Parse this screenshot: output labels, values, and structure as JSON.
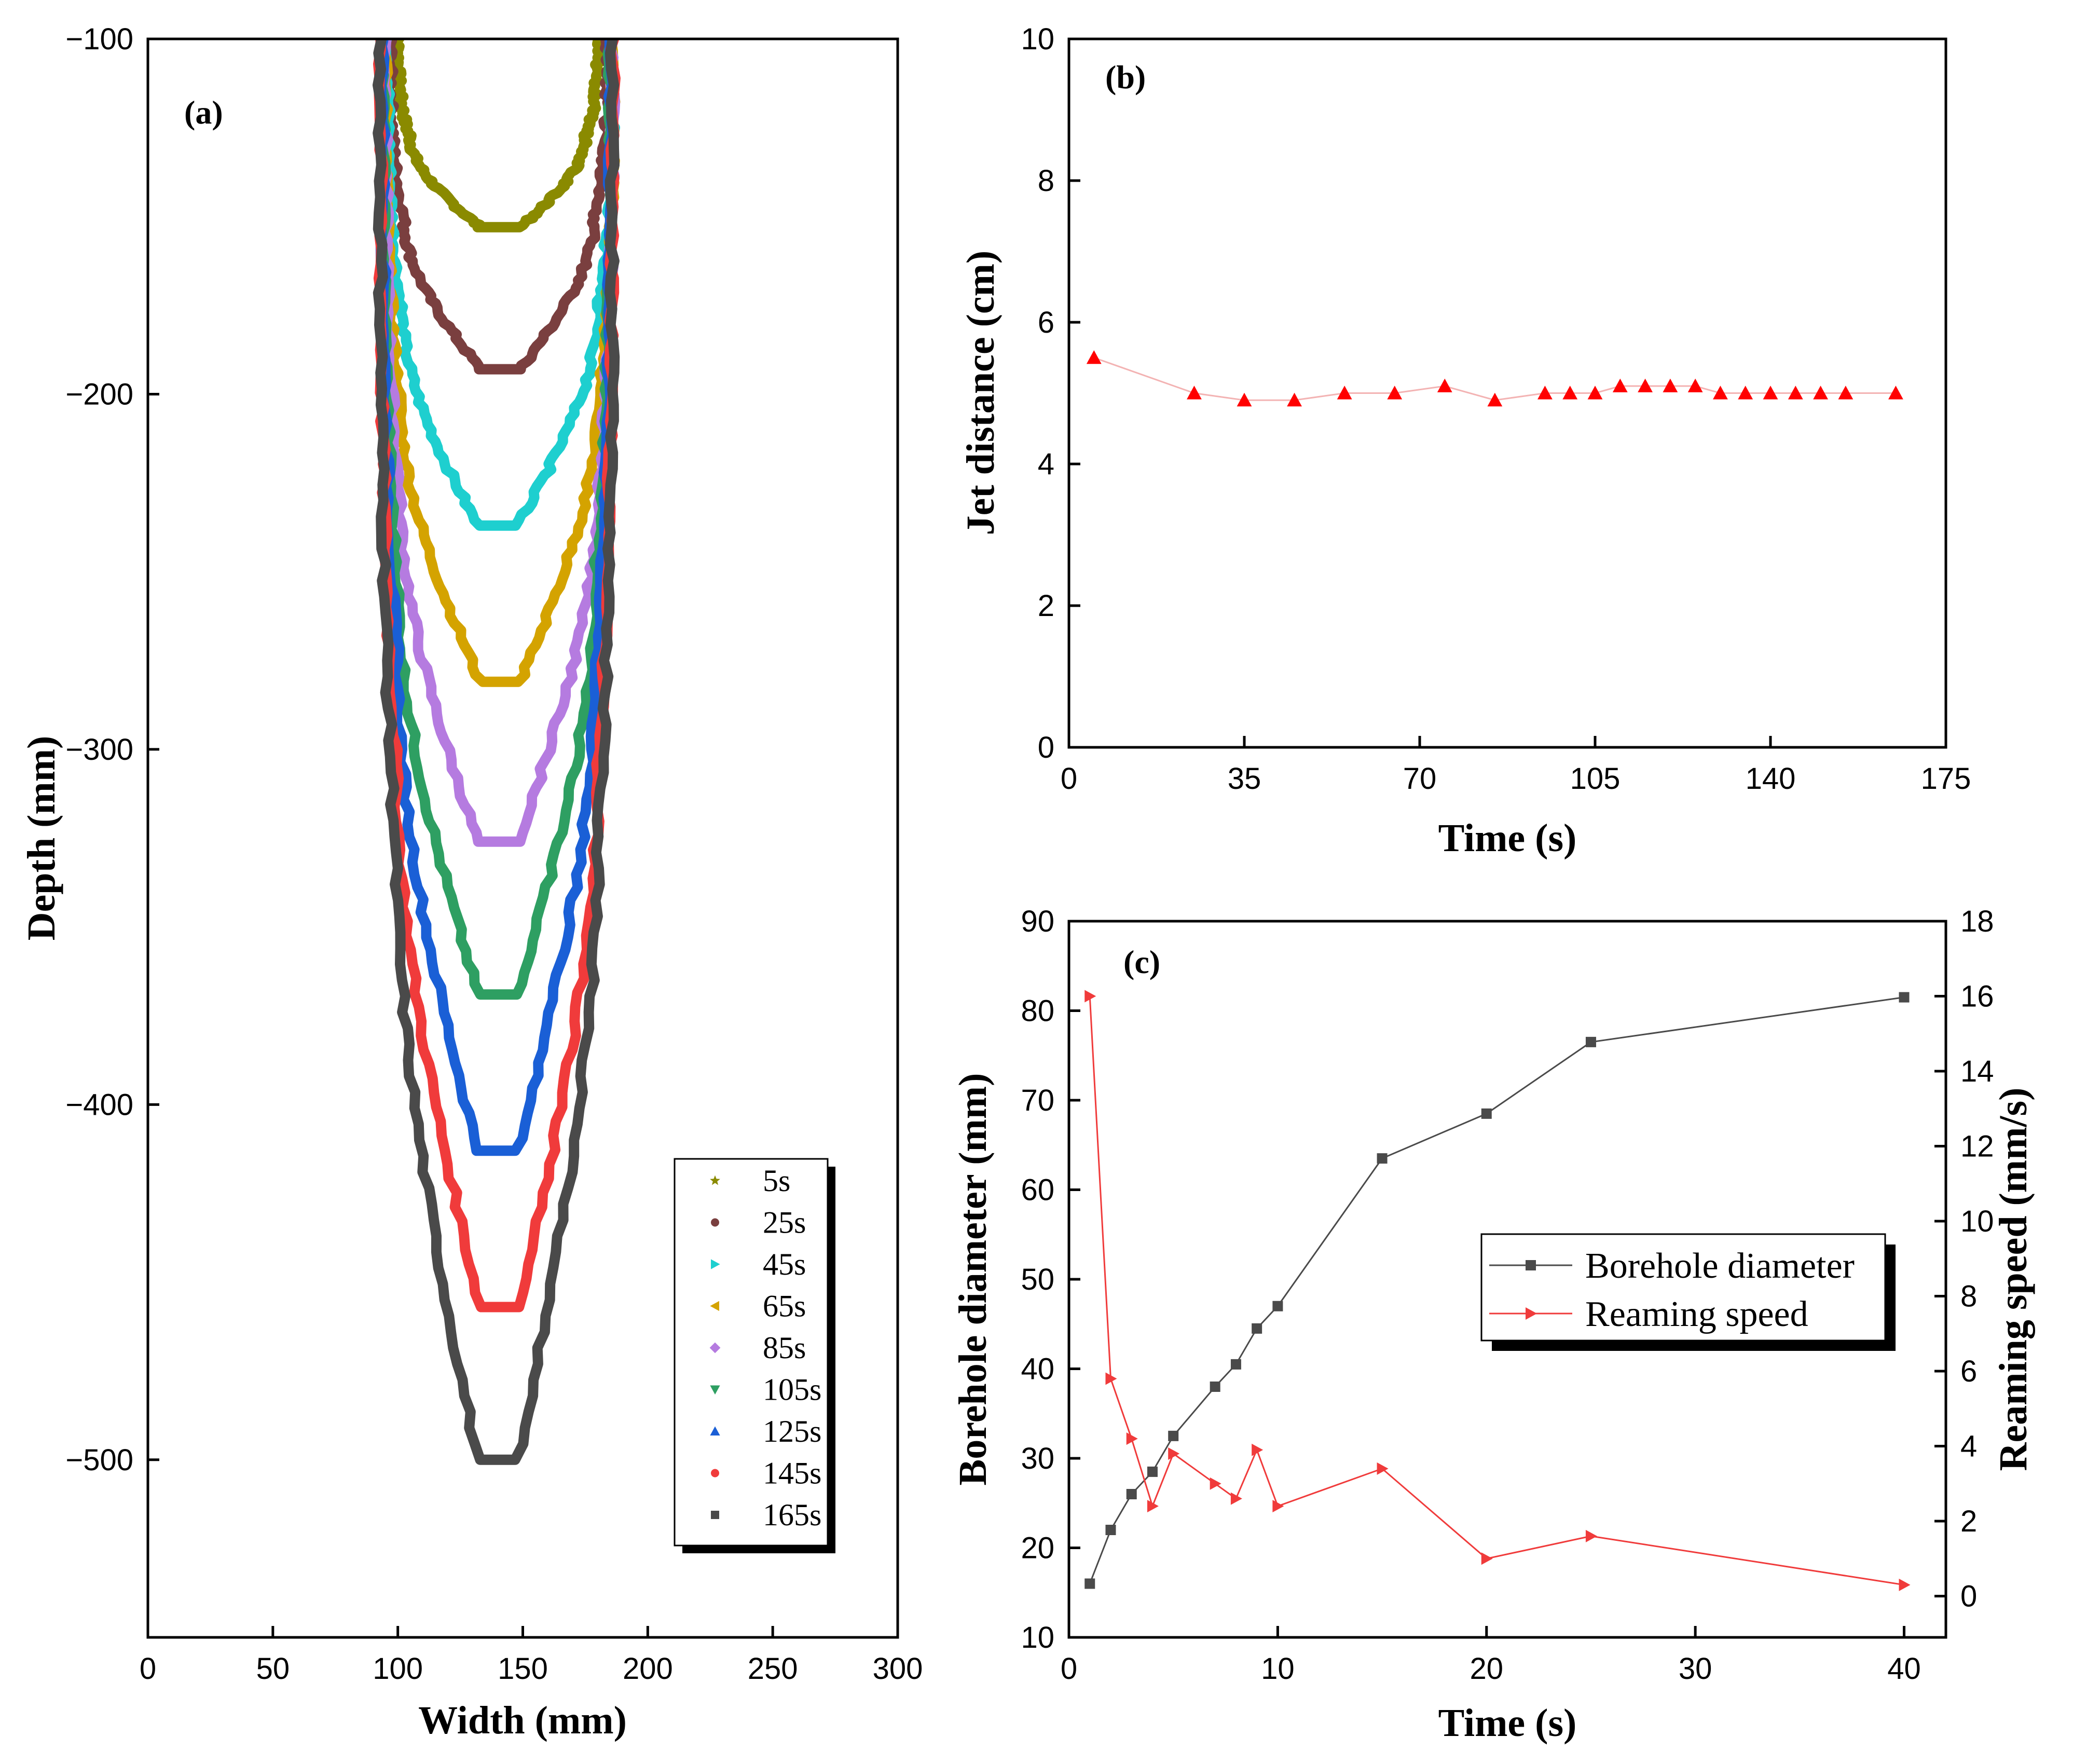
{
  "chart_data": [
    {
      "id": "a",
      "type": "line",
      "panel_label": "(a)",
      "xlabel": "Width (mm)",
      "ylabel": "Depth (mm)",
      "xlim": [
        0,
        300
      ],
      "ylim": [
        -550,
        -100
      ],
      "xticks": [
        0,
        50,
        100,
        150,
        200,
        250,
        300
      ],
      "yticks": [
        -100,
        -200,
        -300,
        -400,
        -500
      ],
      "xtick_labels": [
        "0",
        "50",
        "100",
        "150",
        "200",
        "250",
        "300"
      ],
      "ytick_labels": [
        "-100",
        "-200",
        "-300",
        "-400",
        "-500"
      ],
      "legend_position": "bottom-right",
      "series": [
        {
          "name": "5s",
          "color": "#8a8a00",
          "marker": "star",
          "bottom_depth": -153,
          "center_x": 141,
          "half_width": 40,
          "top_left": 100,
          "top_right": 180
        },
        {
          "name": "25s",
          "color": "#7a3f3f",
          "marker": "circle",
          "bottom_depth": -193,
          "center_x": 141,
          "half_width": 43,
          "top_left": 97,
          "top_right": 184
        },
        {
          "name": "45s",
          "color": "#1ecfcf",
          "marker": "triangle-right",
          "bottom_depth": -237,
          "center_x": 140,
          "half_width": 44,
          "top_left": 96,
          "top_right": 186
        },
        {
          "name": "65s",
          "color": "#d4a300",
          "marker": "triangle-left",
          "bottom_depth": -281,
          "center_x": 141,
          "half_width": 44,
          "top_left": 95,
          "top_right": 186
        },
        {
          "name": "85s",
          "color": "#b57be0",
          "marker": "diamond",
          "bottom_depth": -326,
          "center_x": 140,
          "half_width": 45,
          "top_left": 95,
          "top_right": 186
        },
        {
          "name": "105s",
          "color": "#2e9f62",
          "marker": "triangle-down",
          "bottom_depth": -369,
          "center_x": 140,
          "half_width": 45,
          "top_left": 94,
          "top_right": 185
        },
        {
          "name": "125s",
          "color": "#1a5fd6",
          "marker": "triangle-up",
          "bottom_depth": -413,
          "center_x": 140,
          "half_width": 46,
          "top_left": 94,
          "top_right": 185
        },
        {
          "name": "145s",
          "color": "#f03b3b",
          "marker": "circle",
          "bottom_depth": -457,
          "center_x": 141,
          "half_width": 47,
          "top_left": 93,
          "top_right": 186
        },
        {
          "name": "165s",
          "color": "#4a4a4a",
          "marker": "square",
          "bottom_depth": -500,
          "center_x": 140,
          "half_width": 47,
          "top_left": 93,
          "top_right": 186
        }
      ]
    },
    {
      "id": "b",
      "type": "scatter",
      "panel_label": "(b)",
      "xlabel": "Time (s)",
      "ylabel": "Jet distance (cm)",
      "xlim": [
        0,
        175
      ],
      "ylim": [
        0,
        10
      ],
      "xticks": [
        0,
        35,
        70,
        105,
        140,
        175
      ],
      "yticks": [
        0,
        2,
        4,
        6,
        8,
        10
      ],
      "xtick_labels": [
        "0",
        "35",
        "70",
        "105",
        "140",
        "175"
      ],
      "ytick_labels": [
        "0",
        "2",
        "4",
        "6",
        "8",
        "10"
      ],
      "series": [
        {
          "name": "Jet distance",
          "color": "#ff0000",
          "marker": "triangle-up",
          "x": [
            5,
            25,
            35,
            45,
            55,
            65,
            75,
            85,
            95,
            100,
            105,
            110,
            115,
            120,
            125,
            130,
            135,
            140,
            145,
            150,
            155,
            165
          ],
          "y": [
            5.5,
            5.0,
            4.9,
            4.9,
            5.0,
            5.0,
            5.1,
            4.9,
            5.0,
            5.0,
            5.0,
            5.1,
            5.1,
            5.1,
            5.1,
            5.0,
            5.0,
            5.0,
            5.0,
            5.0,
            5.0,
            5.0
          ]
        }
      ]
    },
    {
      "id": "c",
      "type": "line",
      "panel_label": "(c)",
      "xlabel": "Time (s)",
      "ylabel": "Borehole diameter (mm)",
      "y2label": "Reaming speed (mm/s)",
      "xlim": [
        0,
        42
      ],
      "ylim": [
        10,
        90
      ],
      "y2lim": [
        -1.1,
        18
      ],
      "xticks": [
        0,
        10,
        20,
        30,
        40
      ],
      "yticks": [
        10,
        20,
        30,
        40,
        50,
        60,
        70,
        80,
        90
      ],
      "y2ticks": [
        0,
        2,
        4,
        6,
        8,
        10,
        12,
        14,
        16,
        18
      ],
      "xtick_labels": [
        "0",
        "10",
        "20",
        "30",
        "40"
      ],
      "ytick_labels": [
        "10",
        "20",
        "30",
        "40",
        "50",
        "60",
        "70",
        "80",
        "90"
      ],
      "y2tick_labels": [
        "0",
        "2",
        "4",
        "6",
        "8",
        "10",
        "12",
        "14",
        "16",
        "18"
      ],
      "legend_position": "center-right",
      "series": [
        {
          "name": "Borehole diameter",
          "axis": "left",
          "color": "#4a4a4a",
          "marker": "square",
          "x": [
            1,
            2,
            3,
            4,
            5,
            7,
            8,
            9,
            10,
            15,
            20,
            25,
            40
          ],
          "y": [
            16,
            22,
            26,
            28.5,
            32.5,
            38,
            40.5,
            44.5,
            47,
            63.5,
            68.5,
            76.5,
            81.5
          ]
        },
        {
          "name": "Reaming speed",
          "axis": "right",
          "color": "#f03b3b",
          "marker": "triangle-right",
          "x": [
            1,
            2,
            3,
            4,
            5,
            7,
            8,
            9,
            10,
            15,
            20,
            25,
            40
          ],
          "y": [
            16,
            5.8,
            4.2,
            2.4,
            3.8,
            3,
            2.6,
            3.9,
            2.4,
            3.4,
            1.0,
            1.6,
            0.3
          ]
        }
      ]
    }
  ]
}
